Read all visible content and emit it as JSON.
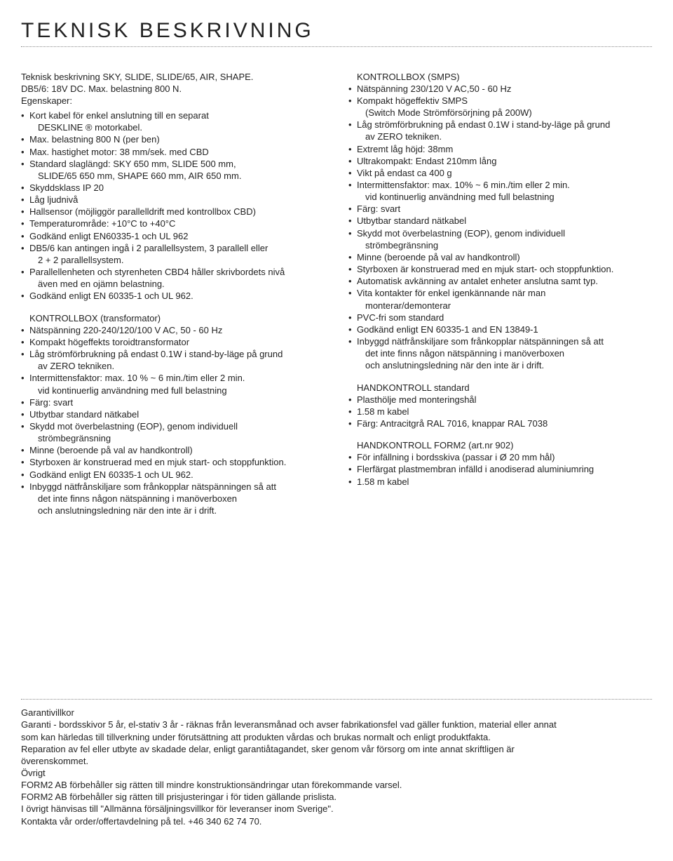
{
  "title": "TEKNISK BESKRIVNING",
  "left": {
    "intro": [
      "Teknisk beskrivning SKY, SLIDE, SLIDE/65, AIR, SHAPE.",
      "DB5/6: 18V DC. Max. belastning 800 N.",
      "Egenskaper:"
    ],
    "bullets1": [
      [
        "Kort kabel för enkel anslutning till en separat",
        "DESKLINE ® motorkabel."
      ],
      [
        "Max. belastning 800 N (per ben)"
      ],
      [
        "Max. hastighet motor: 38 mm/sek. med CBD"
      ],
      [
        "Standard slaglängd: SKY 650 mm, SLIDE 500 mm,",
        "SLIDE/65 650 mm, SHAPE 660 mm, AIR 650 mm."
      ],
      [
        "Skyddsklass IP 20"
      ],
      [
        "Låg ljudnivå"
      ],
      [
        "Hallsensor (möjliggör parallelldrift med kontrollbox CBD)"
      ],
      [
        "Temperaturområde: +10°C to +40°C"
      ],
      [
        "Godkänd enligt EN60335-1 och UL 962"
      ],
      [
        "DB5/6 kan antingen ingå i 2 parallellsystem, 3 parallell eller",
        "2 + 2 parallellsystem."
      ],
      [
        "Parallellenheten och styrenheten CBD4 håller skrivbordets nivå",
        "även med en ojämn belastning."
      ],
      [
        "Godkänd enligt EN 60335-1 och UL 962."
      ]
    ],
    "sect2_title": "KONTROLLBOX (transformator)",
    "bullets2": [
      [
        "Nätspänning 220-240/120/100 V AC, 50 - 60 Hz"
      ],
      [
        "Kompakt högeffekts toroidtransformator"
      ],
      [
        "Låg strömförbrukning på endast 0.1W i stand-by-läge på grund",
        "av ZERO tekniken."
      ],
      [
        "Intermittensfaktor: max. 10 % ~ 6 min./tim eller 2 min.",
        "vid kontinuerlig användning med full belastning"
      ],
      [
        "Färg: svart"
      ],
      [
        "Utbytbar standard nätkabel"
      ],
      [
        "Skydd mot överbelastning (EOP), genom individuell",
        "strömbegränsning"
      ],
      [
        "Minne (beroende på val av handkontroll)"
      ],
      [
        "Styrboxen är konstruerad med en mjuk start- och stoppfunktion."
      ],
      [
        "Godkänd enligt EN 60335-1 och UL 962."
      ],
      [
        "Inbyggd nätfrånskiljare som frånkopplar nätspänningen så att",
        "det inte finns någon nätspänning i manöverboxen",
        "och anslutningsledning när den inte är i drift."
      ]
    ]
  },
  "right": {
    "sect1_title": "KONTROLLBOX (SMPS)",
    "bullets1": [
      [
        "Nätspänning 230/120 V AC,50 - 60 Hz"
      ],
      [
        "Kompakt högeffektiv SMPS",
        "(Switch Mode Strömförsörjning på 200W)"
      ],
      [
        "Låg strömförbrukning på endast 0.1W i stand-by-läge på grund",
        "av ZERO tekniken."
      ],
      [
        "Extremt låg höjd: 38mm"
      ],
      [
        "Ultrakompakt: Endast 210mm lång"
      ],
      [
        "Vikt på endast ca 400 g"
      ],
      [
        "Intermittensfaktor: max. 10% ~ 6 min./tim eller 2 min.",
        "vid kontinuerlig användning med full belastning"
      ],
      [
        "Färg: svart"
      ],
      [
        "Utbytbar standard nätkabel"
      ],
      [
        "Skydd mot överbelastning (EOP), genom individuell",
        "strömbegränsning"
      ],
      [
        "Minne (beroende på val av handkontroll)"
      ],
      [
        "Styrboxen är konstruerad med en mjuk start- och stoppfunktion."
      ],
      [
        "Automatisk avkänning av antalet enheter anslutna samt typ."
      ],
      [
        "Vita kontakter för enkel igenkännande när man",
        "monterar/demonterar"
      ],
      [
        "PVC-fri som standard"
      ],
      [
        "Godkänd enligt EN 60335-1 and EN 13849-1"
      ],
      [
        "Inbyggd nätfrånskiljare som frånkopplar nätspänningen så att",
        "det inte finns någon nätspänning i manöverboxen",
        "och anslutningsledning när den inte är i drift."
      ]
    ],
    "sect2_title": "HANDKONTROLL standard",
    "bullets2": [
      [
        "Plasthölje med monteringshål"
      ],
      [
        "1.58 m kabel"
      ],
      [
        "Färg: Antracitgrå RAL 7016, knappar RAL 7038"
      ]
    ],
    "sect3_title": "HANDKONTROLL FORM2 (art.nr 902)",
    "bullets3": [
      [
        "För infällning i bordsskiva (passar i Ø 20 mm hål)"
      ],
      [
        "Flerfärgat plastmembran infälld i anodiserad aluminiumring"
      ],
      [
        "1.58 m kabel"
      ]
    ]
  },
  "footer": {
    "warranty_title": "Garantivillkor",
    "warranty_body": [
      "Garanti - bordsskivor 5 år, el-stativ 3 år - räknas från leveransmånad och avser fabrikationsfel vad gäller funktion, material eller annat",
      "som kan härledas till tillverkning under förutsättning att  produkten vårdas och brukas normalt och enligt produktfakta.",
      "Reparation av fel eller utbyte av skadade delar, enligt garantiåtagandet, sker genom vår försorg om inte annat skriftligen är",
      "överenskommet."
    ],
    "other_title": "Övrigt",
    "other_body": [
      "FORM2 AB förbehåller sig rätten till mindre konstruktionsändringar utan förekommande varsel.",
      "FORM2 AB förbehåller sig rätten till prisjusteringar i för tiden gällande prislista.",
      "I övrigt hänvisas till \"Allmänna försäljningsvillkor för leveranser inom Sverige\"."
    ],
    "contact": "Kontakta vår order/offertavdelning på tel. +46 340 62 74 70."
  }
}
